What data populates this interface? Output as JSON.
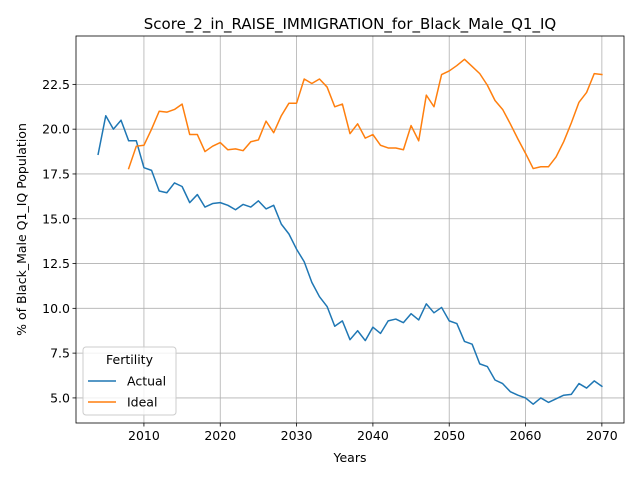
{
  "chart_data": {
    "type": "line",
    "title": "Score_2_in_RAISE_IMMIGRATION_for_Black_Male_Q1_IQ",
    "xlabel": "Years",
    "ylabel": "% of Black_Male Q1_IQ Population",
    "xlim": [
      2001.1,
      2072.9
    ],
    "ylim": [
      3.6,
      25.2
    ],
    "xticks": [
      2010,
      2020,
      2030,
      2040,
      2050,
      2060,
      2070
    ],
    "yticks": [
      5.0,
      7.5,
      10.0,
      12.5,
      15.0,
      17.5,
      20.0,
      22.5
    ],
    "xtick_labels": [
      "2010",
      "2020",
      "2030",
      "2040",
      "2050",
      "2060",
      "2070"
    ],
    "ytick_labels": [
      "5.0",
      "7.5",
      "10.0",
      "12.5",
      "15.0",
      "17.5",
      "20.0",
      "22.5"
    ],
    "grid": true,
    "legend": {
      "title": "Fertility",
      "placement": "lower-left"
    },
    "series": [
      {
        "name": "Actual",
        "color": "#1f77b4",
        "x": [
          2004,
          2005,
          2006,
          2007,
          2008,
          2009,
          2010,
          2011,
          2012,
          2013,
          2014,
          2015,
          2016,
          2017,
          2018,
          2019,
          2020,
          2021,
          2022,
          2023,
          2024,
          2025,
          2026,
          2027,
          2028,
          2029,
          2030,
          2031,
          2032,
          2033,
          2034,
          2035,
          2036,
          2037,
          2038,
          2039,
          2040,
          2041,
          2042,
          2043,
          2044,
          2045,
          2046,
          2047,
          2048,
          2049,
          2050,
          2051,
          2052,
          2053,
          2054,
          2055,
          2056,
          2057,
          2058,
          2059,
          2060,
          2061,
          2062,
          2063,
          2064,
          2065,
          2066,
          2067,
          2068,
          2069,
          2070
        ],
        "y": [
          18.6,
          20.75,
          20.0,
          20.5,
          19.35,
          19.35,
          17.85,
          17.7,
          16.55,
          16.45,
          17.0,
          16.8,
          15.9,
          16.35,
          15.65,
          15.85,
          15.9,
          15.75,
          15.5,
          15.8,
          15.65,
          16.0,
          15.55,
          15.75,
          14.7,
          14.15,
          13.3,
          12.6,
          11.45,
          10.65,
          10.1,
          9.0,
          9.3,
          8.25,
          8.75,
          8.2,
          8.95,
          8.6,
          9.3,
          9.4,
          9.2,
          9.7,
          9.35,
          10.25,
          9.75,
          10.05,
          9.3,
          9.15,
          8.15,
          8.0,
          6.9,
          6.75,
          6.0,
          5.8,
          5.35,
          5.15,
          5.0,
          4.65,
          5.0,
          4.75,
          4.95,
          5.15,
          5.2,
          5.8,
          5.55,
          5.95,
          5.65
        ]
      },
      {
        "name": "Ideal",
        "color": "#ff7f0e",
        "x": [
          2008,
          2009,
          2010,
          2011,
          2012,
          2013,
          2014,
          2015,
          2016,
          2017,
          2018,
          2019,
          2020,
          2021,
          2022,
          2023,
          2024,
          2025,
          2026,
          2027,
          2028,
          2029,
          2030,
          2031,
          2032,
          2033,
          2034,
          2035,
          2036,
          2037,
          2038,
          2039,
          2040,
          2041,
          2042,
          2043,
          2044,
          2045,
          2046,
          2047,
          2048,
          2049,
          2050,
          2051,
          2052,
          2053,
          2054,
          2055,
          2056,
          2057,
          2058,
          2059,
          2060,
          2061,
          2062,
          2063,
          2064,
          2065,
          2066,
          2067,
          2068,
          2069,
          2070
        ],
        "y": [
          17.8,
          19.05,
          19.1,
          20.0,
          21.0,
          20.95,
          21.1,
          21.4,
          19.7,
          19.7,
          18.75,
          19.05,
          19.25,
          18.85,
          18.9,
          18.8,
          19.3,
          19.4,
          20.45,
          19.8,
          20.75,
          21.45,
          21.45,
          22.8,
          22.55,
          22.8,
          22.35,
          21.25,
          21.4,
          19.75,
          20.3,
          19.5,
          19.7,
          19.1,
          18.95,
          18.95,
          18.85,
          20.2,
          19.35,
          21.9,
          21.25,
          23.05,
          23.25,
          23.55,
          23.9,
          23.5,
          23.1,
          22.45,
          21.6,
          21.1,
          20.3,
          19.45,
          18.65,
          17.8,
          17.9,
          17.9,
          18.45,
          19.3,
          20.35,
          21.5,
          22.05,
          23.1,
          23.05
        ]
      }
    ]
  }
}
